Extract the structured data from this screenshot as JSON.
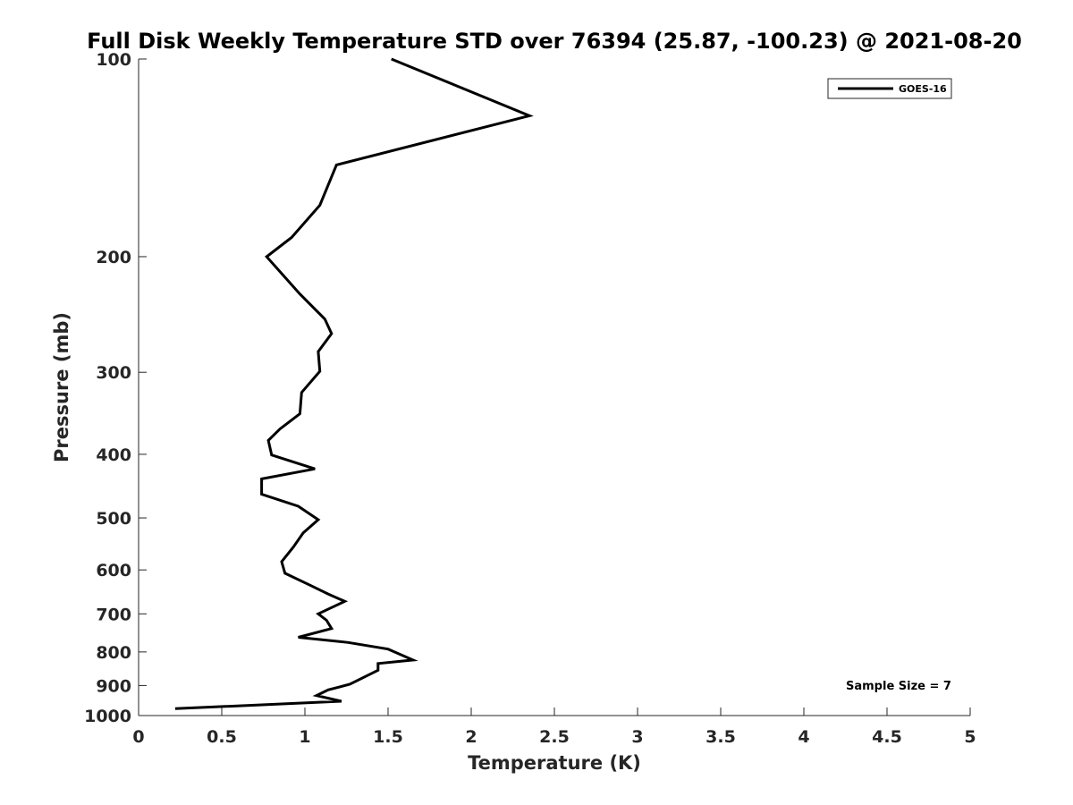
{
  "chart_data": {
    "type": "line",
    "title": "Full Disk Weekly Temperature STD over 76394 (25.87, -100.23) @ 2021-08-20",
    "xlabel": "Temperature (K)",
    "ylabel": "Pressure (mb)",
    "xlim": [
      0,
      5
    ],
    "ylim": [
      100,
      1000
    ],
    "y_scale": "log",
    "y_reversed": true,
    "xticks": [
      "0",
      "0.5",
      "1",
      "1.5",
      "2",
      "2.5",
      "3",
      "3.5",
      "4",
      "4.5",
      "5"
    ],
    "yticks": [
      "100",
      "200",
      "300",
      "400",
      "500",
      "600",
      "700",
      "800",
      "900",
      "1000"
    ],
    "grid": false,
    "legend_position": "top-right",
    "annotation": "Sample Size = 7",
    "series": [
      {
        "name": "GOES-16",
        "color": "#000000",
        "points": [
          [
            1.52,
            100
          ],
          [
            2.35,
            122
          ],
          [
            1.19,
            145
          ],
          [
            1.09,
            167
          ],
          [
            0.92,
            187
          ],
          [
            0.77,
            200
          ],
          [
            0.97,
            228
          ],
          [
            1.12,
            249
          ],
          [
            1.16,
            262
          ],
          [
            1.08,
            279
          ],
          [
            1.09,
            299
          ],
          [
            0.98,
            322
          ],
          [
            0.97,
            347
          ],
          [
            0.85,
            366
          ],
          [
            0.78,
            381
          ],
          [
            0.8,
            401
          ],
          [
            1.06,
            421
          ],
          [
            0.74,
            436
          ],
          [
            0.74,
            460
          ],
          [
            0.96,
            480
          ],
          [
            1.08,
            503
          ],
          [
            0.99,
            527
          ],
          [
            0.93,
            554
          ],
          [
            0.86,
            583
          ],
          [
            0.88,
            607
          ],
          [
            1.03,
            633
          ],
          [
            1.14,
            653
          ],
          [
            1.24,
            670
          ],
          [
            1.08,
            700
          ],
          [
            1.13,
            716
          ],
          [
            1.16,
            737
          ],
          [
            0.96,
            760
          ],
          [
            1.26,
            774
          ],
          [
            1.5,
            792
          ],
          [
            1.65,
            823
          ],
          [
            1.44,
            833
          ],
          [
            1.44,
            853
          ],
          [
            1.27,
            896
          ],
          [
            1.14,
            914
          ],
          [
            1.07,
            932
          ],
          [
            1.22,
            951
          ],
          [
            0.22,
            976
          ]
        ]
      }
    ]
  }
}
